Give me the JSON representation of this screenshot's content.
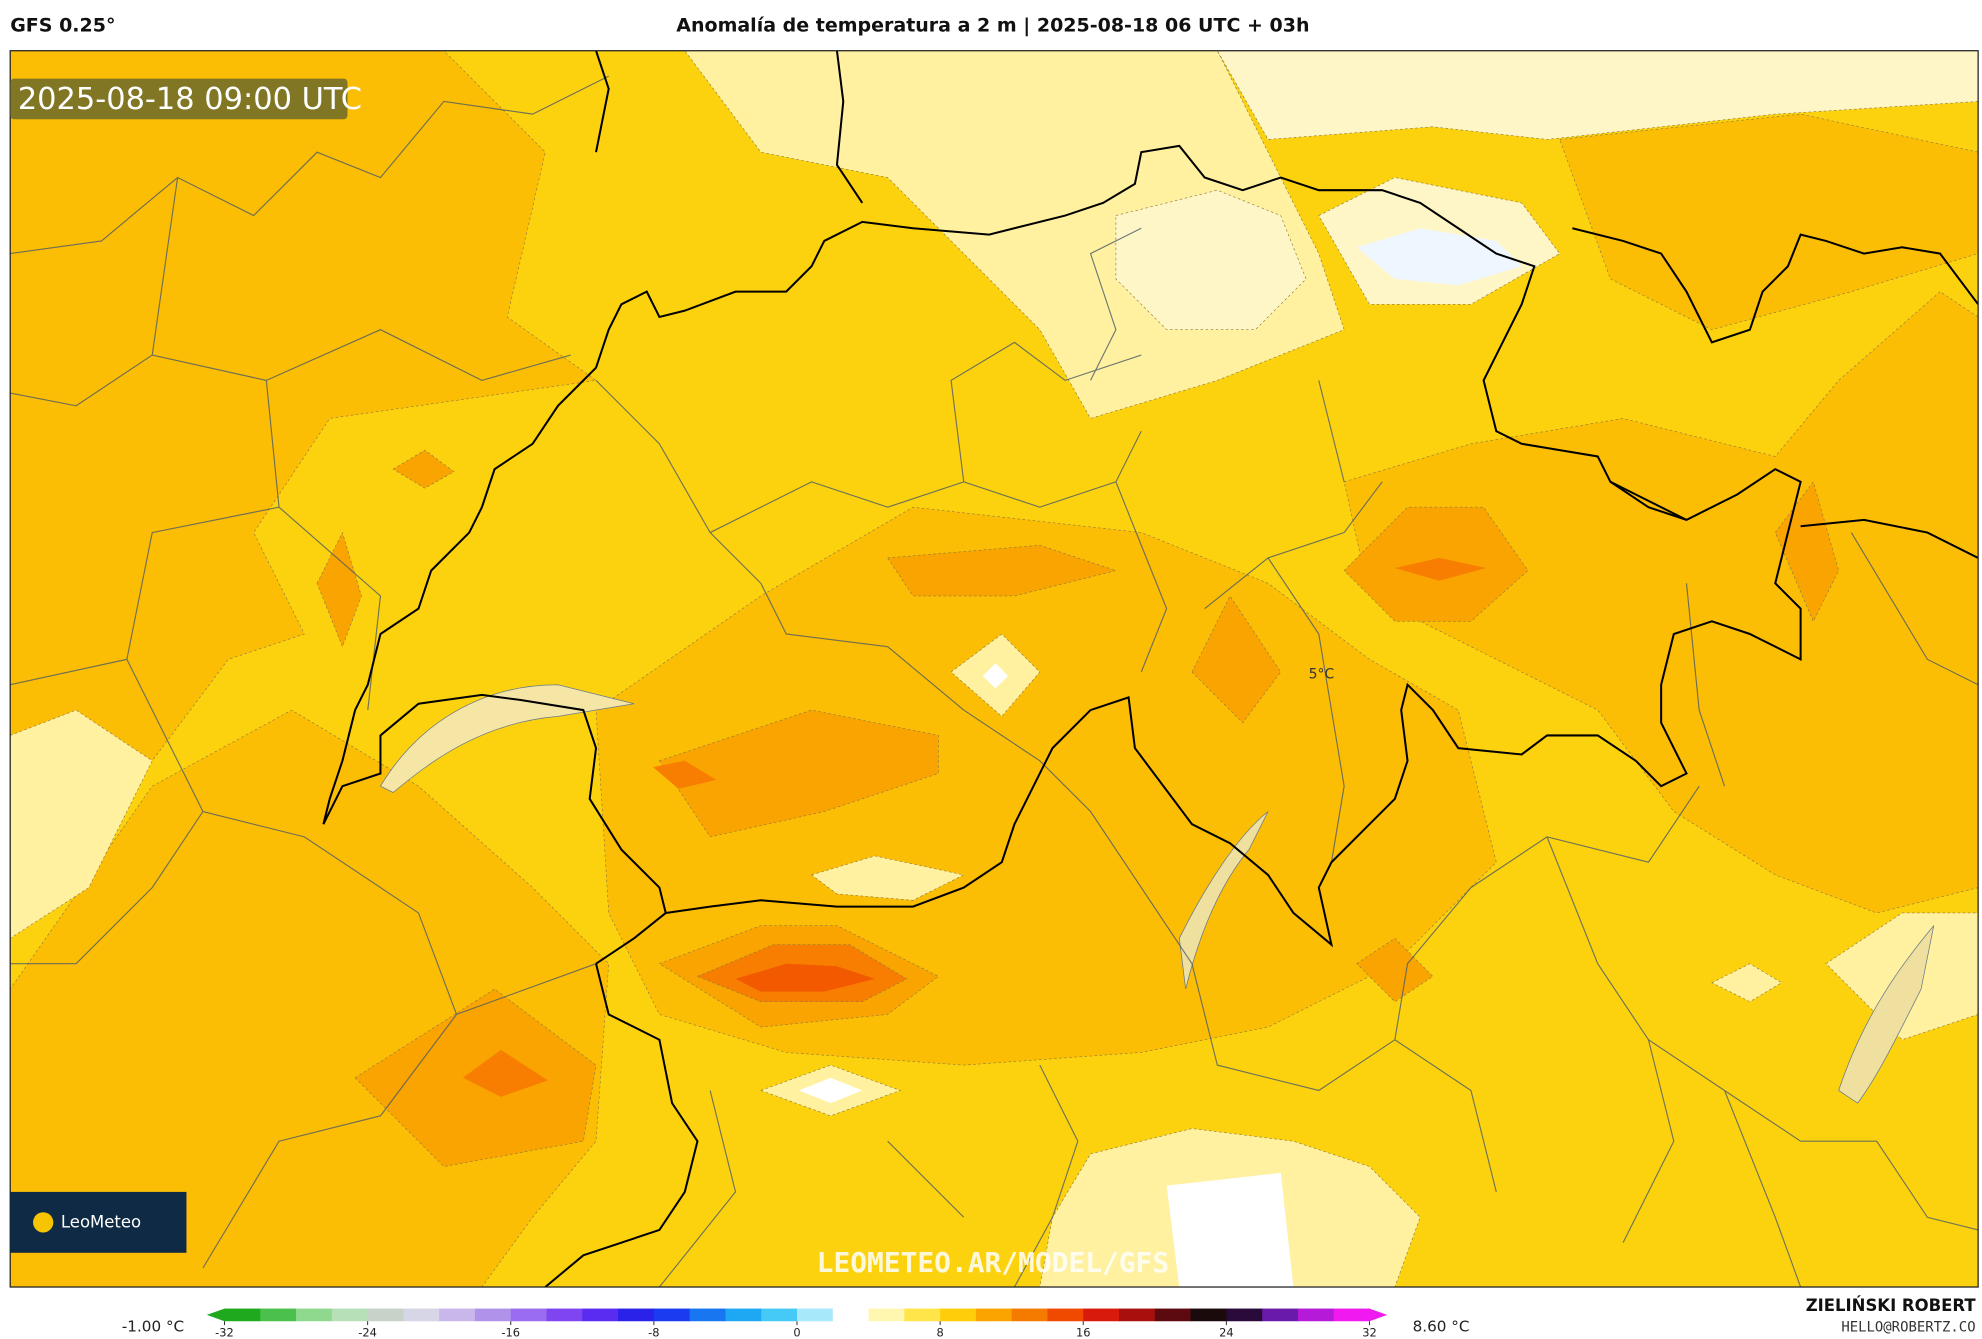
{
  "header": {
    "model": "GFS 0.25°",
    "title": "Anomalía de temperatura a 2 m | 2025-08-18 06 UTC + 03h"
  },
  "map": {
    "timestamp": "2025-08-18 09:00 UTC",
    "label": "5°C",
    "watermark": "LEOMETEO.AR/MODEL/GFS",
    "logo": "LeoMeteo"
  },
  "colorbar": {
    "min_label": "-1.00 °C",
    "max_label": "8.60 °C",
    "range": [
      -32,
      32
    ],
    "ticks": [
      -32,
      -24,
      -16,
      -8,
      0,
      8,
      16,
      24,
      32
    ],
    "colors": [
      "#1fa91f",
      "#4cc04c",
      "#8fd98f",
      "#b8e0b8",
      "#c9d2c9",
      "#d6d6e6",
      "#c9b6ea",
      "#b192ea",
      "#9a6df0",
      "#7e45f0",
      "#5a2cf2",
      "#2a22e8",
      "#1a3cf0",
      "#1877f0",
      "#1ea8f4",
      "#45c9f7",
      "#a7e8fb",
      "#ffffff",
      "#fff6b0",
      "#ffe54a",
      "#ffcd0a",
      "#fba400",
      "#f57a00",
      "#ef4a00",
      "#d81a0c",
      "#a8100e",
      "#5c0a10",
      "#1a0a0c",
      "#2a0a3a",
      "#6a1aa8",
      "#b41ad8",
      "#f01af0"
    ]
  },
  "credits": {
    "author": "ZIELIŃSKI ROBERT",
    "email": "HELLO@ROBERTZ.CO"
  }
}
